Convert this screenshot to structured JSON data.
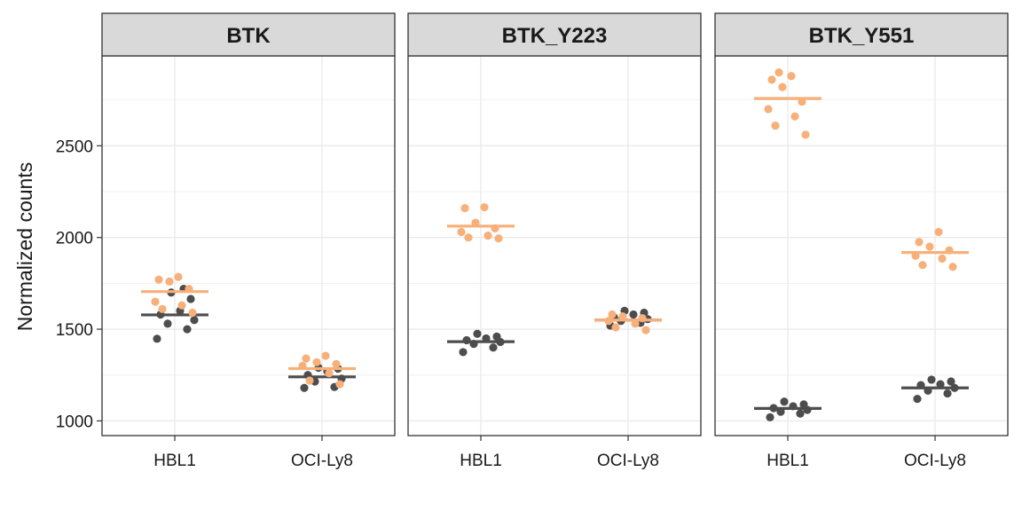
{
  "chart_data": {
    "type": "scatter",
    "ylabel": "Normalized counts",
    "xlabel": "",
    "ylim": [
      920,
      2990
    ],
    "yticks": [
      1000,
      1500,
      2000,
      2500
    ],
    "categories": [
      "HBL1",
      "OCI-Ly8"
    ],
    "colors": {
      "dark": "#4d4d4d",
      "light": "#f7b07a",
      "strip": "#d9d9d9",
      "grid": "#ebebeb"
    },
    "panels": [
      {
        "title": "BTK",
        "groups": [
          {
            "category": "HBL1",
            "color": "dark",
            "mean": 1578,
            "points": [
              1448,
              1500,
              1530,
              1550,
              1580,
              1600,
              1665,
              1700,
              1720
            ]
          },
          {
            "category": "HBL1",
            "color": "light",
            "mean": 1705,
            "points": [
              1590,
              1610,
              1630,
              1650,
              1720,
              1760,
              1770,
              1785
            ]
          },
          {
            "category": "OCI-Ly8",
            "color": "dark",
            "mean": 1240,
            "points": [
              1180,
              1185,
              1215,
              1230,
              1250,
              1270,
              1285,
              1290
            ]
          },
          {
            "category": "OCI-Ly8",
            "color": "light",
            "mean": 1285,
            "points": [
              1200,
              1220,
              1260,
              1300,
              1310,
              1320,
              1340,
              1355
            ]
          }
        ]
      },
      {
        "title": "BTK_Y223",
        "groups": [
          {
            "category": "HBL1",
            "color": "dark",
            "mean": 1432,
            "points": [
              1375,
              1400,
              1420,
              1430,
              1440,
              1450,
              1460,
              1475
            ]
          },
          {
            "category": "HBL1",
            "color": "light",
            "mean": 2062,
            "points": [
              1995,
              2000,
              2010,
              2030,
              2050,
              2080,
              2160,
              2165
            ]
          },
          {
            "category": "OCI-Ly8",
            "color": "dark",
            "mean": 1550,
            "points": [
              1520,
              1535,
              1545,
              1555,
              1565,
              1580,
              1590,
              1600
            ]
          },
          {
            "category": "OCI-Ly8",
            "color": "light",
            "mean": 1550,
            "points": [
              1495,
              1510,
              1530,
              1545,
              1560,
              1570,
              1580
            ]
          }
        ]
      },
      {
        "title": "BTK_Y551",
        "groups": [
          {
            "category": "HBL1",
            "color": "dark",
            "mean": 1068,
            "points": [
              1020,
              1040,
              1050,
              1060,
              1070,
              1080,
              1090,
              1105
            ]
          },
          {
            "category": "HBL1",
            "color": "light",
            "mean": 2758,
            "points": [
              2560,
              2610,
              2660,
              2700,
              2740,
              2820,
              2860,
              2880,
              2900
            ]
          },
          {
            "category": "OCI-Ly8",
            "color": "dark",
            "mean": 1180,
            "points": [
              1120,
              1150,
              1165,
              1180,
              1195,
              1200,
              1215,
              1225
            ]
          },
          {
            "category": "OCI-Ly8",
            "color": "light",
            "mean": 1918,
            "points": [
              1840,
              1850,
              1885,
              1900,
              1930,
              1950,
              1975,
              2030
            ]
          }
        ]
      }
    ]
  }
}
